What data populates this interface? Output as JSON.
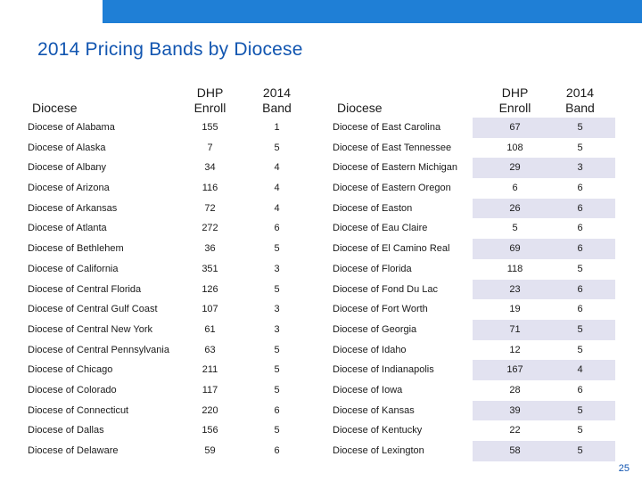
{
  "title": "2014 Pricing Bands by Diocese",
  "page_number": "25",
  "headers": {
    "diocese": "Diocese",
    "enroll": "DHP Enroll",
    "band": "2014 Band"
  },
  "left_rows": [
    {
      "name": "Diocese of Alabama",
      "enroll": "155",
      "band": "1"
    },
    {
      "name": "Diocese of Alaska",
      "enroll": "7",
      "band": "5"
    },
    {
      "name": "Diocese of Albany",
      "enroll": "34",
      "band": "4"
    },
    {
      "name": "Diocese of Arizona",
      "enroll": "116",
      "band": "4"
    },
    {
      "name": "Diocese of Arkansas",
      "enroll": "72",
      "band": "4"
    },
    {
      "name": "Diocese of Atlanta",
      "enroll": "272",
      "band": "6"
    },
    {
      "name": "Diocese of Bethlehem",
      "enroll": "36",
      "band": "5"
    },
    {
      "name": "Diocese of California",
      "enroll": "351",
      "band": "3"
    },
    {
      "name": "Diocese of Central Florida",
      "enroll": "126",
      "band": "5"
    },
    {
      "name": "Diocese of Central Gulf Coast",
      "enroll": "107",
      "band": "3"
    },
    {
      "name": "Diocese of Central New York",
      "enroll": "61",
      "band": "3"
    },
    {
      "name": "Diocese of Central Pennsylvania",
      "enroll": "63",
      "band": "5"
    },
    {
      "name": "Diocese of Chicago",
      "enroll": "211",
      "band": "5"
    },
    {
      "name": "Diocese of Colorado",
      "enroll": "117",
      "band": "5"
    },
    {
      "name": "Diocese of Connecticut",
      "enroll": "220",
      "band": "6"
    },
    {
      "name": "Diocese of Dallas",
      "enroll": "156",
      "band": "5"
    },
    {
      "name": "Diocese of Delaware",
      "enroll": "59",
      "band": "6"
    }
  ],
  "right_rows": [
    {
      "name": "Diocese of East Carolina",
      "enroll": "67",
      "band": "5"
    },
    {
      "name": "Diocese of East Tennessee",
      "enroll": "108",
      "band": "5"
    },
    {
      "name": "Diocese of Eastern Michigan",
      "enroll": "29",
      "band": "3"
    },
    {
      "name": "Diocese of Eastern Oregon",
      "enroll": "6",
      "band": "6"
    },
    {
      "name": "Diocese of Easton",
      "enroll": "26",
      "band": "6"
    },
    {
      "name": "Diocese of Eau Claire",
      "enroll": "5",
      "band": "6"
    },
    {
      "name": "Diocese of El Camino Real",
      "enroll": "69",
      "band": "6"
    },
    {
      "name": "Diocese of Florida",
      "enroll": "118",
      "band": "5"
    },
    {
      "name": "Diocese of Fond Du Lac",
      "enroll": "23",
      "band": "6"
    },
    {
      "name": "Diocese of Fort Worth",
      "enroll": "19",
      "band": "6"
    },
    {
      "name": "Diocese of Georgia",
      "enroll": "71",
      "band": "5"
    },
    {
      "name": "Diocese of Idaho",
      "enroll": "12",
      "band": "5"
    },
    {
      "name": "Diocese of Indianapolis",
      "enroll": "167",
      "band": "4"
    },
    {
      "name": "Diocese of Iowa",
      "enroll": "28",
      "band": "6"
    },
    {
      "name": "Diocese of Kansas",
      "enroll": "39",
      "band": "5"
    },
    {
      "name": "Diocese of Kentucky",
      "enroll": "22",
      "band": "5"
    },
    {
      "name": "Diocese of Lexington",
      "enroll": "58",
      "band": "5"
    }
  ]
}
